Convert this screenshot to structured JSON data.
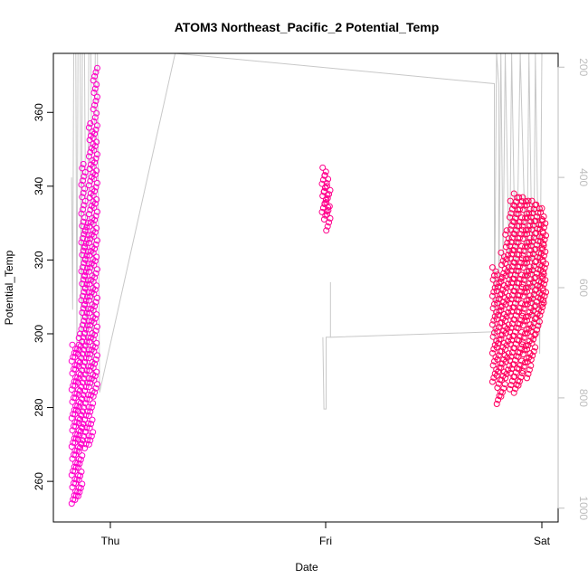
{
  "chart_data": {
    "type": "scatter",
    "title": "ATOM3 Northeast_Pacific_2 Potential_Temp",
    "xlabel": "Date",
    "ylabel": "Potential_Temp",
    "x_tick_labels": [
      "Thu",
      "Fri",
      "Sat"
    ],
    "y_ticks": [
      260,
      280,
      300,
      320,
      340,
      360
    ],
    "ylim": [
      249,
      376
    ],
    "secondary_axis": {
      "ticks": [
        200,
        400,
        600,
        800,
        1000
      ],
      "reversed": true,
      "range": [
        175,
        1025
      ],
      "color": "#bdbdbd"
    },
    "xlim_days": [
      -0.21,
      2.06
    ],
    "series": [
      {
        "marker": "open-circle",
        "color_range": [
          "#ff00cc",
          "#ff0055"
        ],
        "profiles": [
          {
            "x": -0.17,
            "y": [
              254,
              297
            ]
          },
          {
            "x": -0.155,
            "y": [
              255,
              297
            ]
          },
          {
            "x": -0.14,
            "y": [
              256,
              300
            ]
          },
          {
            "x": -0.125,
            "y": [
              270,
              346
            ]
          },
          {
            "x": -0.11,
            "y": [
              269,
              330
            ]
          },
          {
            "x": -0.09,
            "y": [
              270,
              357
            ]
          },
          {
            "x": -0.07,
            "y": [
              283,
              372
            ]
          },
          {
            "x": 0.99,
            "y": [
              333,
              345
            ]
          },
          {
            "x": 1.0,
            "y": [
              331,
              343
            ]
          },
          {
            "x": 1.01,
            "y": [
              328,
              340
            ]
          },
          {
            "x": 1.78,
            "y": [
              287,
              318
            ]
          },
          {
            "x": 1.8,
            "y": [
              281,
              316
            ]
          },
          {
            "x": 1.82,
            "y": [
              283,
              322
            ]
          },
          {
            "x": 1.84,
            "y": [
              288,
              328
            ]
          },
          {
            "x": 1.86,
            "y": [
              285,
              336
            ]
          },
          {
            "x": 1.88,
            "y": [
              284,
              338
            ]
          },
          {
            "x": 1.9,
            "y": [
              286,
              337
            ]
          },
          {
            "x": 1.92,
            "y": [
              290,
              337
            ]
          },
          {
            "x": 1.94,
            "y": [
              288,
              336
            ]
          },
          {
            "x": 1.96,
            "y": [
              293,
              336
            ]
          },
          {
            "x": 1.98,
            "y": [
              300,
              335
            ]
          },
          {
            "x": 2.0,
            "y": [
              305,
              334
            ]
          },
          {
            "x": 2.01,
            "y": [
              308,
              331
            ]
          }
        ]
      },
      {
        "type": "line",
        "axis": "secondary",
        "color": "#c8c8c8",
        "note": "pressure trace"
      }
    ],
    "grid": false,
    "legend": "none"
  }
}
